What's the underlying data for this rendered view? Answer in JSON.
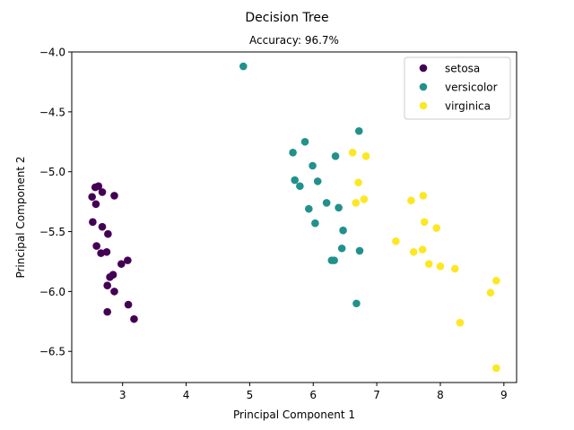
{
  "chart_data": {
    "type": "scatter",
    "suptitle": "Decision Tree",
    "title": "Accuracy: 96.7%",
    "xlabel": "Principal Component 1",
    "ylabel": "Principal Component 2",
    "xlim": [
      2.2,
      9.2
    ],
    "ylim": [
      -6.76,
      -4.0
    ],
    "xticks": [
      3,
      4,
      5,
      6,
      7,
      8,
      9
    ],
    "yticks": [
      -6.5,
      -6.0,
      -5.5,
      -5.0,
      -4.5,
      -4.0
    ],
    "xtick_labels": [
      "3",
      "4",
      "5",
      "6",
      "7",
      "8",
      "9"
    ],
    "ytick_labels": [
      "−6.5",
      "−6.0",
      "−5.5",
      "−5.0",
      "−4.5",
      "−4.0"
    ],
    "grid": false,
    "legend": "top-right",
    "series": [
      {
        "name": "setosa",
        "color": "#440154",
        "points": [
          [
            2.57,
            -5.13
          ],
          [
            2.62,
            -5.12
          ],
          [
            2.68,
            -5.17
          ],
          [
            2.87,
            -5.2
          ],
          [
            2.52,
            -5.21
          ],
          [
            2.58,
            -5.27
          ],
          [
            2.53,
            -5.42
          ],
          [
            2.68,
            -5.46
          ],
          [
            2.77,
            -5.52
          ],
          [
            2.59,
            -5.62
          ],
          [
            2.66,
            -5.68
          ],
          [
            2.75,
            -5.67
          ],
          [
            2.85,
            -5.86
          ],
          [
            2.8,
            -5.88
          ],
          [
            3.08,
            -5.74
          ],
          [
            2.98,
            -5.77
          ],
          [
            2.76,
            -5.95
          ],
          [
            2.87,
            -6.0
          ],
          [
            3.09,
            -6.11
          ],
          [
            2.76,
            -6.17
          ],
          [
            3.18,
            -6.23
          ]
        ]
      },
      {
        "name": "versicolor",
        "color": "#21918c",
        "points": [
          [
            4.9,
            -4.12
          ],
          [
            6.72,
            -4.66
          ],
          [
            5.87,
            -4.75
          ],
          [
            5.68,
            -4.84
          ],
          [
            6.35,
            -4.87
          ],
          [
            5.99,
            -4.95
          ],
          [
            5.71,
            -5.07
          ],
          [
            6.07,
            -5.08
          ],
          [
            5.79,
            -5.12
          ],
          [
            6.21,
            -5.26
          ],
          [
            5.93,
            -5.31
          ],
          [
            6.4,
            -5.3
          ],
          [
            6.03,
            -5.43
          ],
          [
            6.47,
            -5.49
          ],
          [
            6.45,
            -5.64
          ],
          [
            6.73,
            -5.66
          ],
          [
            6.29,
            -5.74
          ],
          [
            6.33,
            -5.74
          ],
          [
            6.68,
            -6.1
          ]
        ]
      },
      {
        "name": "virginica",
        "color": "#fde725",
        "points": [
          [
            6.62,
            -4.84
          ],
          [
            6.83,
            -4.87
          ],
          [
            6.71,
            -5.09
          ],
          [
            7.73,
            -5.2
          ],
          [
            7.54,
            -5.24
          ],
          [
            6.8,
            -5.23
          ],
          [
            6.67,
            -5.26
          ],
          [
            7.75,
            -5.42
          ],
          [
            7.94,
            -5.47
          ],
          [
            7.3,
            -5.58
          ],
          [
            7.58,
            -5.67
          ],
          [
            7.72,
            -5.65
          ],
          [
            7.82,
            -5.77
          ],
          [
            8.0,
            -5.79
          ],
          [
            8.23,
            -5.81
          ],
          [
            8.88,
            -5.91
          ],
          [
            8.79,
            -6.01
          ],
          [
            8.31,
            -6.26
          ],
          [
            8.88,
            -6.64
          ]
        ]
      }
    ]
  }
}
